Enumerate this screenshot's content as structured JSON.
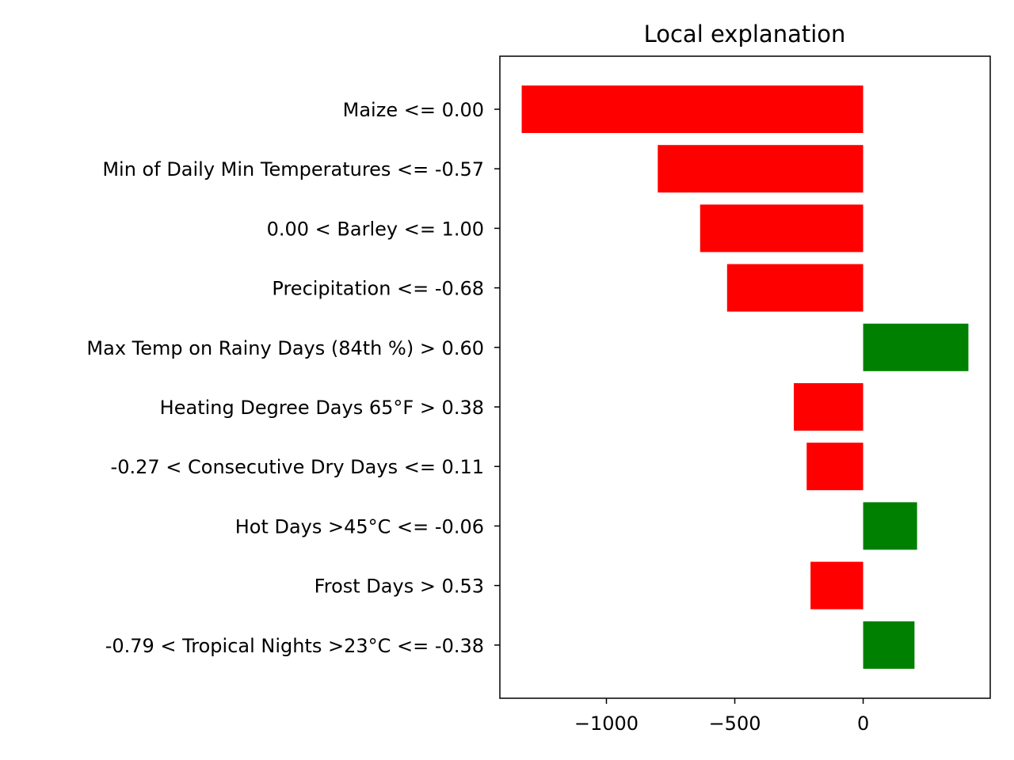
{
  "chart_data": {
    "type": "bar",
    "orientation": "horizontal",
    "title": "Local explanation",
    "xlabel": "",
    "ylabel": "",
    "xlim": [
      -1415,
      495
    ],
    "xticks": [
      {
        "value": -1000,
        "label": "−1000"
      },
      {
        "value": -500,
        "label": "−500"
      },
      {
        "value": 0,
        "label": "0"
      }
    ],
    "grid": false,
    "positive_color": "#008000",
    "negative_color": "#ff0000",
    "categories": [
      "Maize <= 0.00",
      "Min of Daily Min Temperatures <= -0.57",
      "0.00 < Barley <= 1.00",
      "Precipitation <= -0.68",
      "Max Temp on Rainy Days (84th %) > 0.60",
      "Heating Degree Days 65°F > 0.38",
      "-0.27 < Consecutive Dry Days <= 0.11",
      "Hot Days >45°C <= -0.06",
      "Frost Days > 0.53",
      "-0.79 < Tropical Nights >23°C <= -0.38"
    ],
    "values": [
      -1330,
      -800,
      -635,
      -530,
      410,
      -270,
      -220,
      210,
      -205,
      200
    ]
  }
}
